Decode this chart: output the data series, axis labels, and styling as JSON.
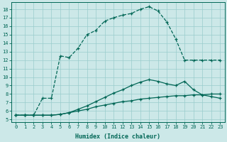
{
  "xlabel": "Humidex (Indice chaleur)",
  "background_color": "#cce8e8",
  "grid_color": "#99cccc",
  "line_color": "#006655",
  "xlim_min": -0.5,
  "xlim_max": 23.5,
  "ylim_min": 4.7,
  "ylim_max": 18.8,
  "xticks": [
    0,
    1,
    2,
    3,
    4,
    5,
    6,
    7,
    8,
    9,
    10,
    11,
    12,
    13,
    14,
    15,
    16,
    17,
    18,
    19,
    20,
    21,
    22,
    23
  ],
  "yticks": [
    5,
    6,
    7,
    8,
    9,
    10,
    11,
    12,
    13,
    14,
    15,
    16,
    17,
    18
  ],
  "line1_x": [
    0,
    1,
    2,
    3,
    4,
    5,
    6,
    7,
    8,
    9,
    10,
    11,
    12,
    13,
    14,
    15,
    16,
    17,
    18,
    19,
    20,
    21,
    22,
    23
  ],
  "line1_y": [
    5.5,
    5.5,
    5.5,
    5.5,
    5.5,
    5.6,
    5.8,
    6.0,
    6.2,
    6.5,
    6.7,
    6.9,
    7.1,
    7.2,
    7.4,
    7.5,
    7.6,
    7.7,
    7.8,
    7.8,
    7.9,
    7.9,
    8.0,
    8.0
  ],
  "line2_x": [
    0,
    1,
    2,
    3,
    4,
    5,
    6,
    7,
    8,
    9,
    10,
    11,
    12,
    13,
    14,
    15,
    16,
    17,
    18,
    19,
    20,
    21,
    22,
    23
  ],
  "line2_y": [
    5.5,
    5.5,
    5.5,
    5.5,
    5.5,
    5.6,
    5.8,
    6.2,
    6.6,
    7.1,
    7.6,
    8.1,
    8.5,
    9.0,
    9.4,
    9.7,
    9.5,
    9.2,
    9.0,
    9.5,
    8.5,
    7.9,
    7.7,
    7.5
  ],
  "line3_x": [
    0,
    1,
    2,
    3,
    4,
    5,
    6,
    7,
    8,
    9,
    10,
    11,
    12,
    13,
    14,
    15,
    16,
    17,
    18,
    19,
    20,
    21,
    22,
    23
  ],
  "line3_y": [
    5.5,
    5.5,
    5.5,
    7.5,
    7.5,
    12.5,
    12.3,
    13.4,
    15.0,
    15.5,
    16.6,
    17.0,
    17.3,
    17.5,
    18.0,
    18.3,
    17.8,
    16.5,
    14.5,
    12.0,
    12.0,
    12.0,
    12.0,
    12.0
  ]
}
